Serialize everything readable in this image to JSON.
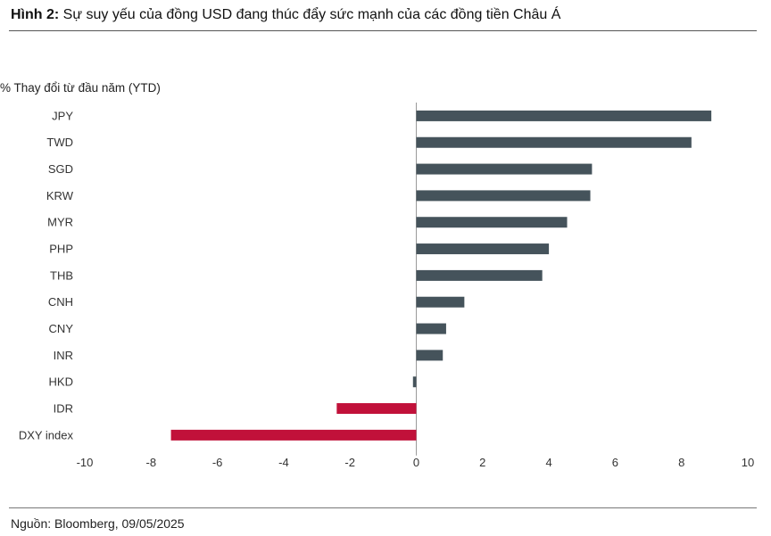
{
  "header": {
    "title_prefix": "Hình 2:",
    "title_text": " Sự suy yếu của đồng USD đang thúc đẩy sức mạnh của các đồng tiền Châu Á"
  },
  "footer": {
    "source": "Nguồn: Bloomberg, 09/05/2025"
  },
  "colors": {
    "positive": "#45535b",
    "negative": "#c1113a",
    "axis": "#9a9a9a",
    "label": "#333333"
  },
  "chart_data": {
    "type": "bar",
    "orientation": "horizontal",
    "title": "Sự suy yếu của đồng USD đang thúc đẩy sức mạnh của các đồng tiền Châu Á",
    "ylabel": "% Thay đổi từ đầu năm (YTD)",
    "xlabel": "",
    "categories": [
      "JPY",
      "TWD",
      "SGD",
      "KRW",
      "MYR",
      "PHP",
      "THB",
      "CNH",
      "CNY",
      "INR",
      "HKD",
      "IDR",
      "DXY index"
    ],
    "values": [
      8.9,
      8.3,
      5.3,
      5.25,
      4.55,
      4.0,
      3.8,
      1.45,
      0.9,
      0.8,
      -0.1,
      -2.4,
      -7.4
    ],
    "xlim": [
      -10,
      10
    ],
    "xticks": [
      -10,
      -8,
      -6,
      -4,
      -2,
      0,
      2,
      4,
      6,
      8,
      10
    ],
    "grid": false,
    "legend": "none"
  }
}
